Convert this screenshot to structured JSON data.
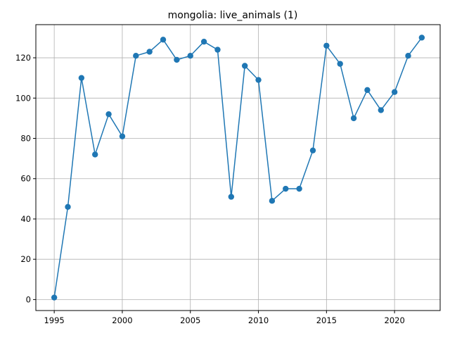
{
  "chart_data": {
    "type": "line",
    "title": "mongolia: live_animals (1)",
    "xlabel": "",
    "ylabel": "",
    "x": [
      1995,
      1996,
      1997,
      1998,
      1999,
      2000,
      2001,
      2002,
      2003,
      2004,
      2005,
      2006,
      2007,
      2008,
      2009,
      2010,
      2011,
      2012,
      2013,
      2014,
      2015,
      2016,
      2017,
      2018,
      2019,
      2020,
      2021,
      2022
    ],
    "series": [
      {
        "values": [
          1,
          46,
          110,
          72,
          92,
          81,
          121,
          123,
          129,
          119,
          121,
          128,
          124,
          51,
          116,
          109,
          49,
          55,
          55,
          74,
          126,
          117,
          90,
          104,
          94,
          103,
          121,
          130
        ],
        "color": "#1f77b4"
      }
    ],
    "xlim": [
      1993.65,
      2023.35
    ],
    "ylim": [
      -5.45,
      136.45
    ],
    "xticks": [
      1995,
      2000,
      2005,
      2010,
      2015,
      2020
    ],
    "yticks": [
      0,
      20,
      40,
      60,
      80,
      100,
      120
    ],
    "grid": true,
    "marker": "circle"
  }
}
